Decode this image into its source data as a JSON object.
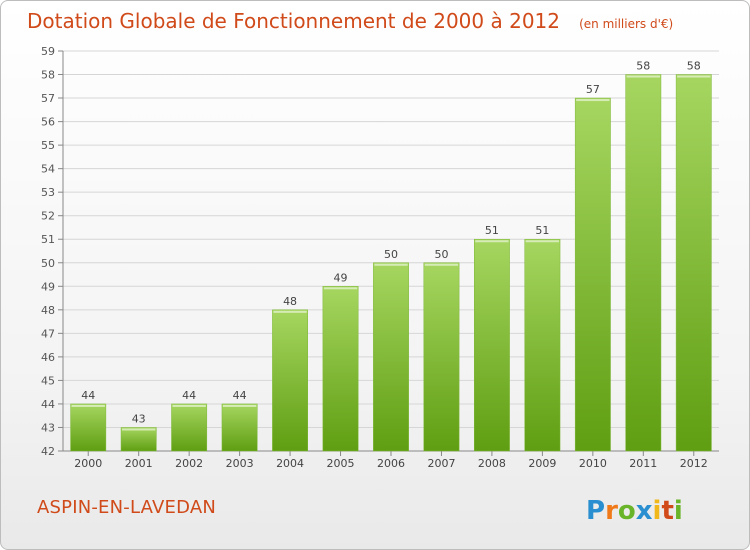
{
  "header": {
    "title": "Dotation Globale de Fonctionnement de 2000 à 2012",
    "subtitle": "(en milliers d'€)"
  },
  "footer": {
    "commune": "ASPIN-EN-LAVEDAN",
    "logo_text": "Proxiti"
  },
  "colors": {
    "accent": "#d04a1a",
    "bar_top": "#a6d660",
    "bar_bottom": "#5f9e12",
    "grid": "#d6d6d6"
  },
  "chart_data": {
    "type": "bar",
    "categories": [
      "2000",
      "2001",
      "2002",
      "2003",
      "2004",
      "2005",
      "2006",
      "2007",
      "2008",
      "2009",
      "2010",
      "2011",
      "2012"
    ],
    "values": [
      44,
      43,
      44,
      44,
      48,
      49,
      50,
      50,
      51,
      51,
      57,
      58,
      58
    ],
    "title": "Dotation Globale de Fonctionnement de 2000 à 2012",
    "subtitle": "(en milliers d'€)",
    "xlabel": "",
    "ylabel": "",
    "ylim": [
      42,
      59
    ],
    "yticks": [
      42,
      43,
      44,
      45,
      46,
      47,
      48,
      49,
      50,
      51,
      52,
      53,
      54,
      55,
      56,
      57,
      58,
      59
    ],
    "grid": true,
    "data_labels": true
  }
}
